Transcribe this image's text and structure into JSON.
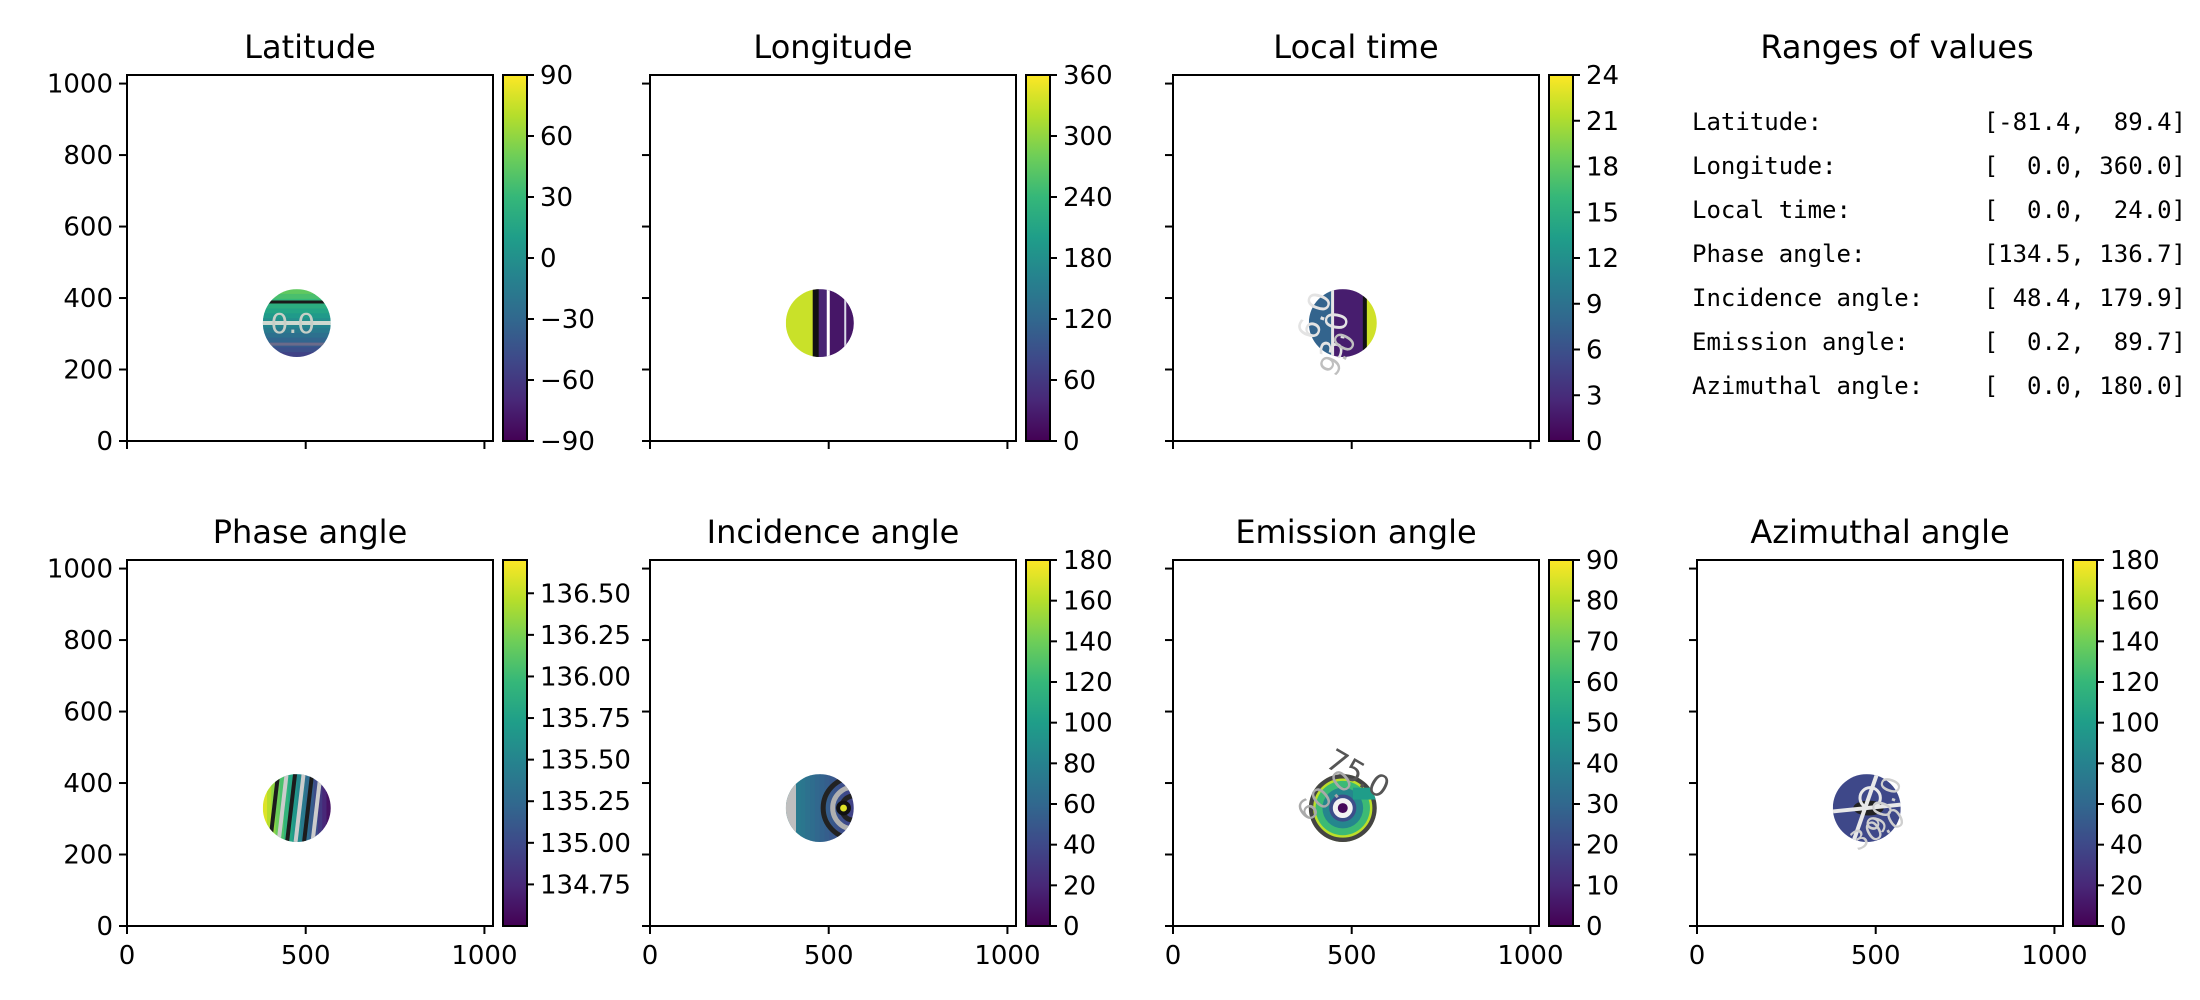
{
  "colormap": [
    "#440154",
    "#482878",
    "#3e4989",
    "#31688e",
    "#26828e",
    "#1f9e89",
    "#35b779",
    "#6ece58",
    "#b5de2b",
    "#fde725"
  ],
  "axes": {
    "xlim": [
      0,
      1024
    ],
    "ylim": [
      0,
      1024
    ],
    "xticks": [
      "0",
      "500",
      "1000"
    ],
    "yticks": [
      "0",
      "200",
      "400",
      "600",
      "800",
      "1000"
    ]
  },
  "disk": {
    "cx": 475,
    "cy": 330,
    "r": 95
  },
  "ranges_panel": {
    "title": "Ranges of values",
    "rows": [
      {
        "label": "Latitude:",
        "range": "[-81.4,  89.4]"
      },
      {
        "label": "Longitude:",
        "range": "[  0.0, 360.0]"
      },
      {
        "label": "Local time:",
        "range": "[  0.0,  24.0]"
      },
      {
        "label": "Phase angle:",
        "range": "[134.5, 136.7]"
      },
      {
        "label": "Incidence angle:",
        "range": "[ 48.4, 179.9]"
      },
      {
        "label": "Emission angle:",
        "range": "[  0.2,  89.7]"
      },
      {
        "label": "Azimuthal angle:",
        "range": "[  0.0, 180.0]"
      }
    ]
  },
  "chart_data": [
    {
      "type": "heatmap",
      "title": "Latitude",
      "vmin": -90,
      "vmax": 90,
      "colorbar_ticks": [
        "90",
        "60",
        "30",
        "0",
        "−30",
        "−60",
        "−90"
      ],
      "contour_labels": [
        "0.0"
      ]
    },
    {
      "type": "heatmap",
      "title": "Longitude",
      "vmin": 0,
      "vmax": 360,
      "colorbar_ticks": [
        "360",
        "300",
        "240",
        "180",
        "120",
        "60",
        "0"
      ],
      "contour_labels": []
    },
    {
      "type": "heatmap",
      "title": "Local time",
      "vmin": 0,
      "vmax": 24,
      "colorbar_ticks": [
        "24",
        "21",
        "18",
        "15",
        "12",
        "9",
        "6",
        "3",
        "0"
      ],
      "contour_labels": [
        "6.0",
        "3.0",
        "9.0"
      ]
    },
    {
      "type": "heatmap",
      "title": "Phase angle",
      "vmin": 134.5,
      "vmax": 136.7,
      "colorbar_ticks": [
        "136.50",
        "136.25",
        "136.00",
        "135.75",
        "135.50",
        "135.25",
        "135.00",
        "134.75"
      ],
      "contour_labels": []
    },
    {
      "type": "heatmap",
      "title": "Incidence angle",
      "vmin": 0,
      "vmax": 180,
      "colorbar_ticks": [
        "180",
        "160",
        "140",
        "120",
        "100",
        "80",
        "60",
        "40",
        "20",
        "0"
      ],
      "contour_labels": []
    },
    {
      "type": "heatmap",
      "title": "Emission angle",
      "vmin": 0,
      "vmax": 90,
      "colorbar_ticks": [
        "90",
        "80",
        "70",
        "60",
        "50",
        "40",
        "30",
        "20",
        "10",
        "0"
      ],
      "contour_labels": [
        "75.0",
        "60.0"
      ]
    },
    {
      "type": "heatmap",
      "title": "Azimuthal angle",
      "vmin": 0,
      "vmax": 180,
      "colorbar_ticks": [
        "180",
        "160",
        "140",
        "120",
        "100",
        "80",
        "60",
        "40",
        "20",
        "0"
      ],
      "contour_labels": [
        "90.0",
        "30.0"
      ]
    }
  ]
}
